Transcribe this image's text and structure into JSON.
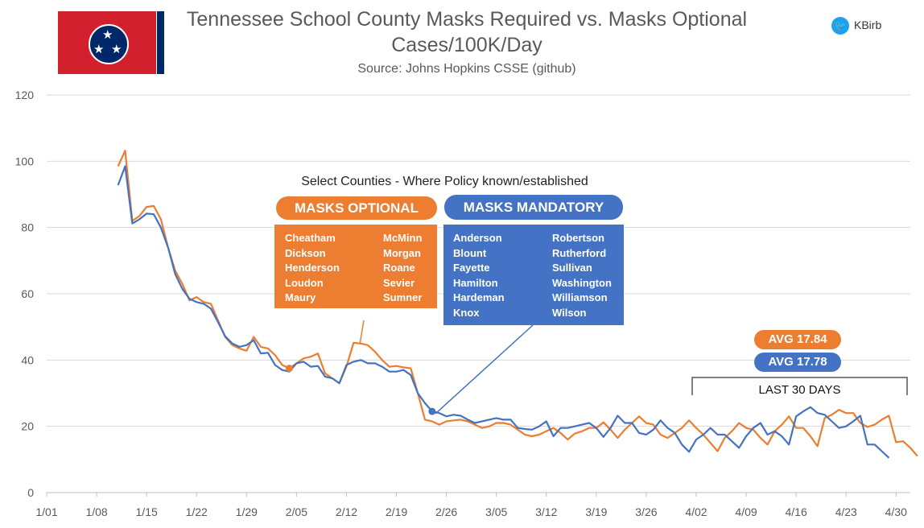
{
  "header": {
    "title_line1": "Tennessee School County Masks Required vs. Masks Optional",
    "title_line2": "Cases/100K/Day",
    "source": "Source: Johns Hopkins CSSE (github)",
    "twitter_handle": "KBirb"
  },
  "colors": {
    "optional": "#ed7d31",
    "mandatory": "#4472c4",
    "flag_red": "#d3202f",
    "flag_blue": "#002868"
  },
  "legend": {
    "heading": "Select Counties - Where Policy known/established",
    "optional_label": "MASKS OPTIONAL",
    "mandatory_label": "MASKS MANDATORY",
    "optional_counties_col1": [
      "Cheatham",
      "Dickson",
      "Henderson",
      "Loudon",
      "Maury"
    ],
    "optional_counties_col2": [
      "McMinn",
      "Morgan",
      "Roane",
      "Sevier",
      "Sumner"
    ],
    "mandatory_counties_col1": [
      "Anderson",
      "Blount",
      "Fayette",
      "Hamilton",
      "Hardeman",
      "Knox"
    ],
    "mandatory_counties_col2": [
      "Robertson",
      "Rutherford",
      "Sullivan",
      "Washington",
      "Williamson",
      "Wilson"
    ]
  },
  "annotations": {
    "avg_optional": "AVG 17.84",
    "avg_mandatory": "AVG 17.78",
    "last_30_label": "LAST 30 DAYS"
  },
  "chart_data": {
    "type": "line",
    "xlabel": "",
    "ylabel": "",
    "ylim": [
      0,
      120
    ],
    "yticks": [
      0,
      20,
      40,
      60,
      80,
      100,
      120
    ],
    "x_tick_labels": [
      "1/01",
      "1/08",
      "1/15",
      "1/22",
      "1/29",
      "2/05",
      "2/12",
      "2/19",
      "2/26",
      "3/05",
      "3/12",
      "3/19",
      "3/26",
      "4/02",
      "4/09",
      "4/16",
      "4/23",
      "4/30"
    ],
    "x_start_day": 1,
    "x_end_day": 122,
    "grid": true,
    "series": [
      {
        "name": "Masks Optional",
        "start_day": 11,
        "values": [
          98.5,
          103.2,
          82,
          83.5,
          86.2,
          86.5,
          82.5,
          74,
          67,
          63,
          58,
          59,
          57.5,
          57,
          52,
          47,
          44.5,
          43.5,
          42.8,
          47,
          44,
          43.5,
          41.5,
          38.5,
          37.5,
          39,
          40.5,
          41,
          42,
          36,
          34.5,
          33,
          38,
          45.2,
          45,
          44.5,
          42.5,
          40,
          38,
          38.2,
          37.8,
          37.5,
          30,
          22,
          21.5,
          20.5,
          21.5,
          21.8,
          22,
          21.5,
          20.5,
          19.5,
          20,
          21,
          21,
          20.5,
          19,
          17.5,
          17,
          17.5,
          18.5,
          19.5,
          18,
          16,
          17.8,
          18.5,
          19.5,
          19.5,
          21.2,
          19,
          16.5,
          19,
          21,
          23,
          21,
          20.5,
          17.5,
          16.5,
          18,
          19.5,
          21.8,
          19.5,
          17.5,
          15,
          12.5,
          16.5,
          18.5,
          21,
          19.5,
          19,
          16.5,
          14.5,
          18.5,
          20.5,
          23,
          19.5,
          19.5,
          17,
          14,
          22.5,
          23.5,
          25,
          24,
          24,
          21,
          19.8,
          20.5,
          22,
          23.2,
          15.2,
          15.5,
          13.5,
          11
        ]
      },
      {
        "name": "Masks Mandatory",
        "start_day": 11,
        "values": [
          92.8,
          98.5,
          81.2,
          82.5,
          84.2,
          84,
          80,
          74,
          66,
          61.5,
          58.5,
          57.5,
          57,
          55.5,
          51.5,
          47.2,
          45,
          44,
          44.5,
          46,
          42,
          42.2,
          38.5,
          37,
          36.5,
          39,
          39.5,
          38,
          38.2,
          35,
          34.5,
          33,
          38.5,
          39.5,
          40,
          39,
          39,
          38,
          36.5,
          36.5,
          37,
          35.5,
          30,
          27,
          24.5,
          24,
          23,
          23.5,
          23.2,
          22,
          21,
          21.5,
          22,
          22.5,
          22,
          22,
          19.5,
          19.2,
          19,
          20,
          21.5,
          17,
          19.5,
          19.5,
          20,
          20.5,
          21,
          19.5,
          16.8,
          19.5,
          23.2,
          21,
          21,
          18,
          17.5,
          19,
          21.8,
          19.5,
          18,
          14.5,
          12.3,
          16,
          17.5,
          19.5,
          17.5,
          17.5,
          15.5,
          13.5,
          17,
          19.5,
          21,
          17.5,
          18.5,
          17,
          14.5,
          23,
          24.5,
          25.8,
          24,
          23.5,
          21.5,
          19.5,
          20,
          21.5,
          23.2,
          14.5,
          14.5,
          12.5,
          10.5
        ]
      }
    ]
  }
}
